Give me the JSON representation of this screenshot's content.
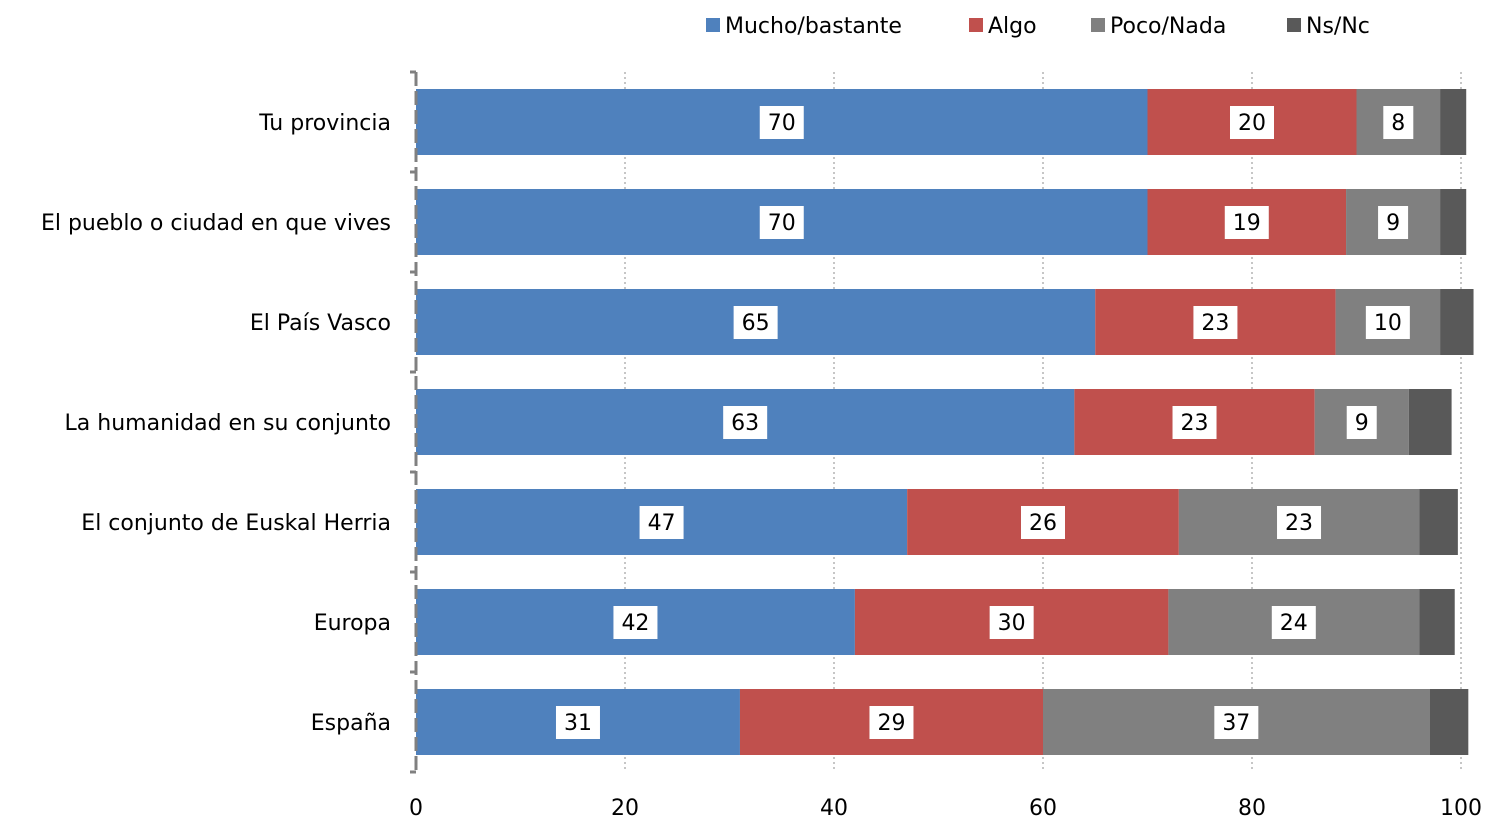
{
  "chart_data": {
    "type": "bar",
    "orientation": "horizontal",
    "stacked": true,
    "categories": [
      "Tu provincia",
      "El pueblo o ciudad en que vives",
      "El País Vasco",
      "La humanidad en su conjunto",
      "El conjunto de Euskal Herria",
      "Europa",
      "España"
    ],
    "series": [
      {
        "name": "Mucho/bastante",
        "color": "#4f81bd",
        "values": [
          70,
          70,
          65,
          63,
          47,
          42,
          31
        ],
        "labels": [
          "70",
          "70",
          "65",
          "63",
          "47",
          "42",
          "31"
        ]
      },
      {
        "name": "Algo",
        "color": "#c0504d",
        "values": [
          20,
          19,
          23,
          23,
          26,
          30,
          29
        ],
        "labels": [
          "20",
          "19",
          "23",
          "23",
          "26",
          "30",
          "29"
        ]
      },
      {
        "name": "Poco/Nada",
        "color": "#808080",
        "values": [
          8,
          9,
          10,
          9,
          23,
          24,
          37
        ],
        "labels": [
          "8",
          "9",
          "10",
          "9",
          "23",
          "24",
          "37"
        ]
      },
      {
        "name": "Ns/Nc",
        "color": "#595959",
        "values": [
          2.5,
          2.5,
          3.2,
          4.1,
          3.7,
          3.4,
          3.7
        ],
        "labels": [
          "",
          "",
          "",
          "",
          "",
          "",
          ""
        ]
      }
    ],
    "xlim": [
      0,
      100
    ],
    "xticks": [
      0,
      20,
      40,
      60,
      80,
      100
    ],
    "grid": true,
    "legend_position": "top-right",
    "title": "",
    "xlabel": "",
    "ylabel": ""
  }
}
